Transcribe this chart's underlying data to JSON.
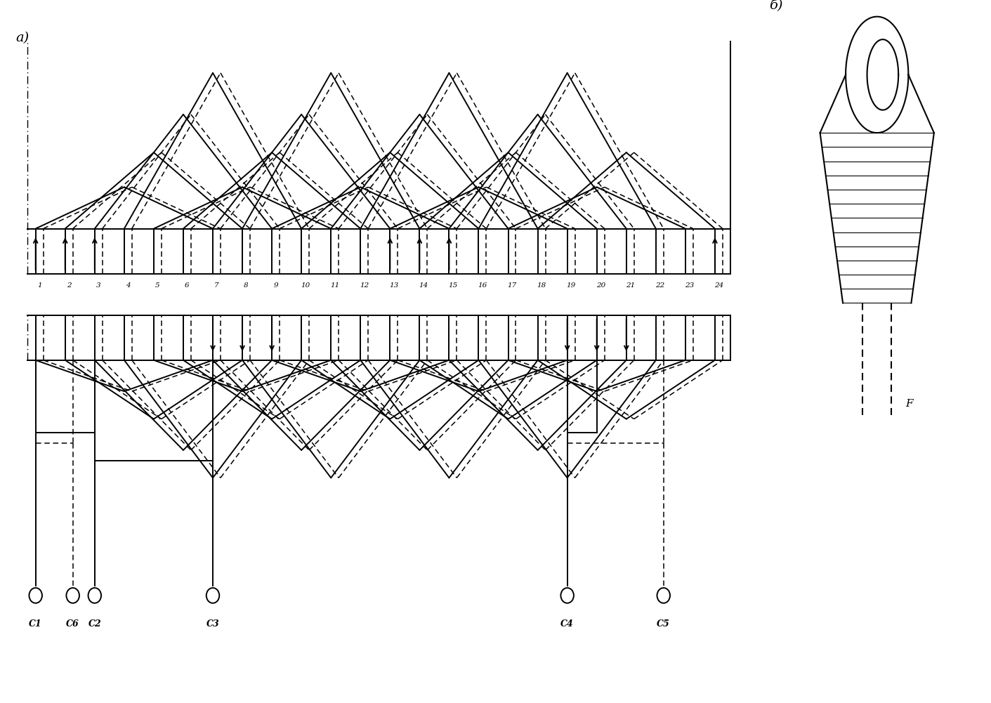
{
  "title_a": "а)",
  "title_b": "б)",
  "num_slots": 24,
  "slot_labels": [
    "1",
    "2",
    "3",
    "4",
    "5",
    "6",
    "7",
    "8",
    "9",
    "10",
    "11",
    "12",
    "13",
    "14",
    "15",
    "16",
    "17",
    "18",
    "19",
    "20",
    "21",
    "22",
    "23",
    "24"
  ],
  "terminal_labels": [
    "C1",
    "C6",
    "C2",
    "C3",
    "C4",
    "C5"
  ],
  "bg_color": "#ffffff",
  "line_color": "#000000"
}
